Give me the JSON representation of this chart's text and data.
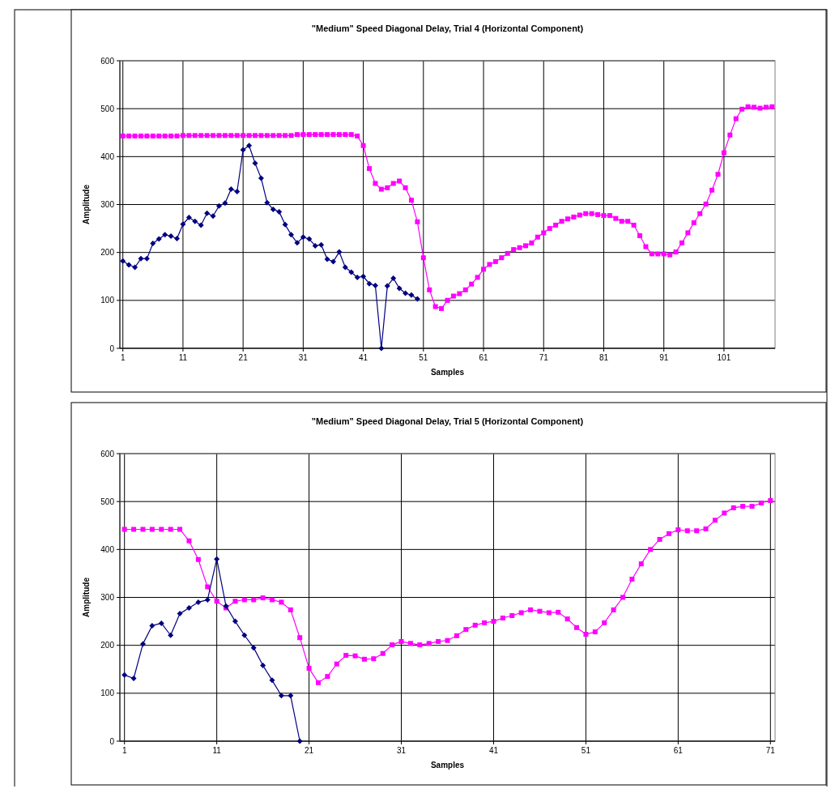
{
  "chart_data": [
    {
      "type": "line",
      "title": "\"Medium\" Speed Diagonal Delay, Trial 4 (Horizontal Component)",
      "xlabel": "Samples",
      "ylabel": "Amplitude",
      "xlim": [
        0.5,
        109.5
      ],
      "xticks": [
        1,
        11,
        21,
        31,
        41,
        51,
        61,
        71,
        81,
        91,
        101
      ],
      "ylim": [
        0,
        600
      ],
      "yticks": [
        0,
        100,
        200,
        300,
        400,
        500,
        600
      ],
      "grid": true,
      "series": [
        {
          "color": "#000080",
          "marker": "diamond",
          "x": [
            1,
            2,
            3,
            4,
            5,
            6,
            7,
            8,
            9,
            10,
            11,
            12,
            13,
            14,
            15,
            16,
            17,
            18,
            19,
            20,
            21,
            22,
            23,
            24,
            25,
            26,
            27,
            28,
            29,
            30,
            31,
            32,
            33,
            34,
            35,
            36,
            37,
            38,
            39,
            40,
            41,
            42,
            43,
            44,
            45,
            46,
            47,
            48,
            49,
            50
          ],
          "values": [
            182,
            174,
            169,
            187,
            187,
            219,
            228,
            237,
            234,
            229,
            259,
            273,
            265,
            257,
            282,
            276,
            297,
            303,
            332,
            327,
            414,
            423,
            386,
            355,
            304,
            290,
            285,
            258,
            237,
            220,
            232,
            228,
            214,
            216,
            186,
            181,
            201,
            169,
            159,
            148,
            150,
            135,
            131,
            0,
            130,
            146,
            125,
            115,
            111,
            103
          ]
        },
        {
          "color": "#ff00ff",
          "marker": "square",
          "x": [
            1,
            2,
            3,
            4,
            5,
            6,
            7,
            8,
            9,
            10,
            11,
            12,
            13,
            14,
            15,
            16,
            17,
            18,
            19,
            20,
            21,
            22,
            23,
            24,
            25,
            26,
            27,
            28,
            29,
            30,
            31,
            32,
            33,
            34,
            35,
            36,
            37,
            38,
            39,
            40,
            41,
            42,
            43,
            44,
            45,
            46,
            47,
            48,
            49,
            50,
            51,
            52,
            53,
            54,
            55,
            56,
            57,
            58,
            59,
            60,
            61,
            62,
            63,
            64,
            65,
            66,
            67,
            68,
            69,
            70,
            71,
            72,
            73,
            74,
            75,
            76,
            77,
            78,
            79,
            80,
            81,
            82,
            83,
            84,
            85,
            86,
            87,
            88,
            89,
            90,
            91,
            92,
            93,
            94,
            95,
            96,
            97,
            98,
            99,
            100,
            101,
            102,
            103,
            104,
            105,
            106,
            107,
            108,
            109
          ],
          "values": [
            443,
            443,
            443,
            443,
            443,
            443,
            443,
            443,
            443,
            443,
            444,
            444,
            444,
            444,
            444,
            444,
            444,
            444,
            444,
            444,
            444,
            444,
            444,
            444,
            444,
            444,
            444,
            444,
            444,
            446,
            446,
            446,
            446,
            446,
            446,
            446,
            446,
            446,
            446,
            443,
            423,
            375,
            344,
            332,
            335,
            344,
            349,
            335,
            309,
            264,
            189,
            122,
            87,
            83,
            100,
            109,
            114,
            122,
            134,
            148,
            165,
            175,
            181,
            189,
            198,
            206,
            210,
            214,
            220,
            232,
            241,
            250,
            257,
            265,
            270,
            274,
            278,
            281,
            281,
            279,
            277,
            277,
            271,
            265,
            265,
            257,
            235,
            212,
            197,
            197,
            197,
            195,
            201,
            220,
            241,
            262,
            281,
            301,
            330,
            363,
            408,
            445,
            479,
            499,
            504,
            503,
            501,
            503,
            504
          ]
        }
      ]
    },
    {
      "type": "line",
      "title": "\"Medium\" Speed Diagonal Delay, Trial 5 (Horizontal Component)",
      "xlabel": "Samples",
      "ylabel": "Amplitude",
      "xlim": [
        0.5,
        71.5
      ],
      "xticks": [
        1,
        11,
        21,
        31,
        41,
        51,
        61,
        71
      ],
      "ylim": [
        0,
        600
      ],
      "yticks": [
        0,
        100,
        200,
        300,
        400,
        500,
        600
      ],
      "grid": true,
      "series": [
        {
          "color": "#000080",
          "marker": "diamond",
          "x": [
            1,
            2,
            3,
            4,
            5,
            6,
            7,
            8,
            9,
            10,
            11,
            12,
            13,
            14,
            15,
            16,
            17,
            18,
            19,
            20
          ],
          "values": [
            138,
            131,
            203,
            241,
            246,
            221,
            266,
            278,
            290,
            295,
            380,
            282,
            250,
            221,
            195,
            158,
            127,
            95,
            95,
            0
          ]
        },
        {
          "color": "#ff00ff",
          "marker": "square",
          "x": [
            1,
            2,
            3,
            4,
            5,
            6,
            7,
            8,
            9,
            10,
            11,
            12,
            13,
            14,
            15,
            16,
            17,
            18,
            19,
            20,
            21,
            22,
            23,
            24,
            25,
            26,
            27,
            28,
            29,
            30,
            31,
            32,
            33,
            34,
            35,
            36,
            37,
            38,
            39,
            40,
            41,
            42,
            43,
            44,
            45,
            46,
            47,
            48,
            49,
            50,
            51,
            52,
            53,
            54,
            55,
            56,
            57,
            58,
            59,
            60,
            61,
            62,
            63,
            64,
            65,
            66,
            67,
            68,
            69,
            70,
            71
          ],
          "values": [
            442,
            442,
            442,
            442,
            442,
            442,
            442,
            418,
            379,
            322,
            292,
            278,
            292,
            295,
            295,
            299,
            295,
            290,
            274,
            216,
            152,
            122,
            135,
            161,
            179,
            178,
            171,
            172,
            183,
            201,
            208,
            204,
            201,
            204,
            208,
            210,
            220,
            233,
            242,
            247,
            250,
            257,
            262,
            268,
            274,
            271,
            268,
            269,
            255,
            237,
            223,
            228,
            247,
            274,
            300,
            338,
            370,
            400,
            421,
            433,
            441,
            439,
            439,
            443,
            461,
            476,
            487,
            490,
            490,
            497,
            502
          ]
        }
      ]
    }
  ]
}
